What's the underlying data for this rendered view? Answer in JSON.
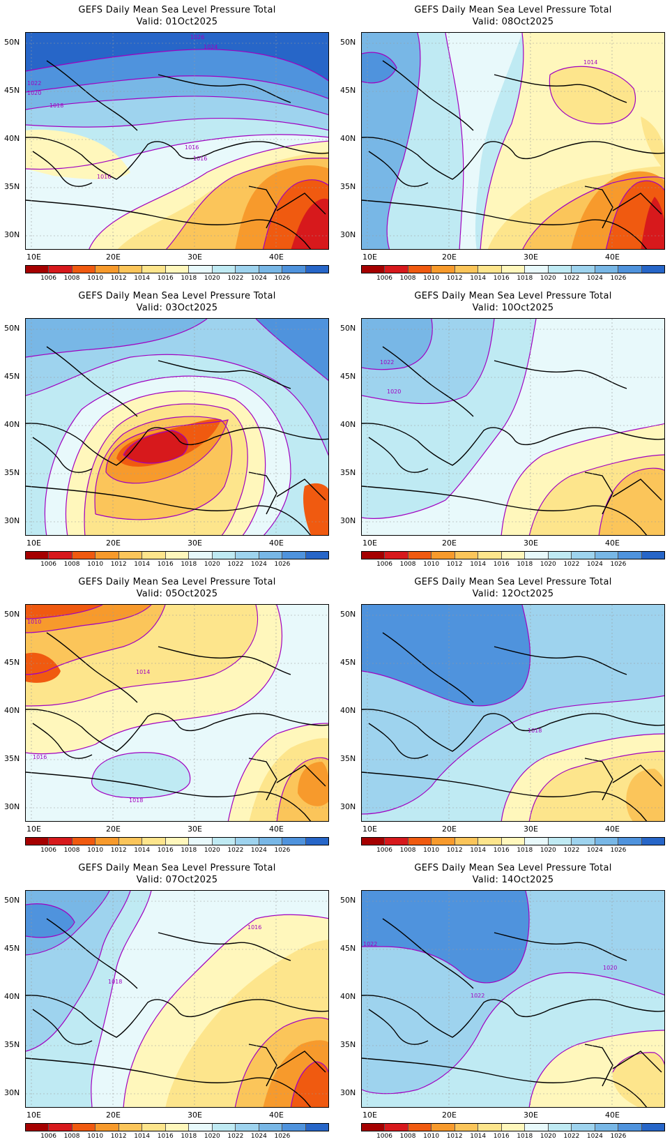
{
  "colorbar": {
    "colors": [
      "#a50000",
      "#d7191c",
      "#f05a10",
      "#f79a2c",
      "#fbc55a",
      "#fde58c",
      "#fff7bc",
      "#e8f9fb",
      "#bfeaf3",
      "#9ed3ee",
      "#78b7e6",
      "#4f93dd",
      "#2766c8"
    ],
    "labels": [
      "1006",
      "1008",
      "1010",
      "1012",
      "1014",
      "1016",
      "1018",
      "1020",
      "1022",
      "1024",
      "1026"
    ]
  },
  "axes": {
    "lat_labels": [
      "50N",
      "45N",
      "40N",
      "35N",
      "30N"
    ],
    "lon_labels": [
      "10E",
      "20E",
      "30E",
      "40E"
    ]
  },
  "panels": [
    {
      "title": "GEFS Daily Mean Sea Level Pressure Total",
      "valid": "Valid: 01Oct2025",
      "contour_labels": [
        "1026",
        "1024",
        "1022",
        "1020",
        "1018",
        "1016",
        "1016",
        "1016"
      ]
    },
    {
      "title": "GEFS Daily Mean Sea Level Pressure Total",
      "valid": "Valid: 08Oct2025",
      "contour_labels": [
        "1014"
      ]
    },
    {
      "title": "GEFS Daily Mean Sea Level Pressure Total",
      "valid": "Valid: 03Oct2025",
      "contour_labels": []
    },
    {
      "title": "GEFS Daily Mean Sea Level Pressure Total",
      "valid": "Valid: 10Oct2025",
      "contour_labels": [
        "1022",
        "1020"
      ]
    },
    {
      "title": "GEFS Daily Mean Sea Level Pressure Total",
      "valid": "Valid: 05Oct2025",
      "contour_labels": [
        "1010",
        "1014",
        "1016",
        "1018"
      ]
    },
    {
      "title": "GEFS Daily Mean Sea Level Pressure Total",
      "valid": "Valid: 12Oct2025",
      "contour_labels": [
        "1018"
      ]
    },
    {
      "title": "GEFS Daily Mean Sea Level Pressure Total",
      "valid": "Valid: 07Oct2025",
      "contour_labels": [
        "1016",
        "1018"
      ]
    },
    {
      "title": "GEFS Daily Mean Sea Level Pressure Total",
      "valid": "Valid: 14Oct2025",
      "contour_labels": [
        "1022",
        "1020",
        "1022"
      ]
    }
  ]
}
